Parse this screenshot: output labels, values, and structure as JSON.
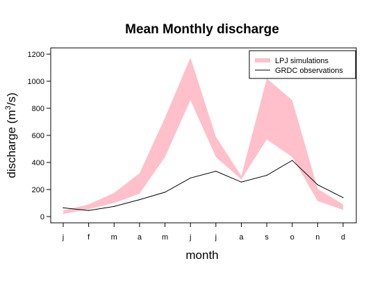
{
  "chart_data": {
    "type": "area",
    "title": "Mean Monthly discharge",
    "xlabel": "month",
    "ylabel_main": "discharge (m",
    "ylabel_sup": "3",
    "ylabel_tail": "/s)",
    "categories": [
      "j",
      "f",
      "m",
      "a",
      "m",
      "j",
      "j",
      "a",
      "s",
      "o",
      "n",
      "d"
    ],
    "ylim": [
      0,
      1200
    ],
    "yticks": [
      0,
      200,
      400,
      600,
      800,
      1000,
      1200
    ],
    "series": [
      {
        "name": "LPJ simulations",
        "kind": "band",
        "color": "#ffc0cb",
        "lower": [
          20,
          55,
          100,
          170,
          440,
          860,
          440,
          275,
          570,
          440,
          115,
          50
        ],
        "upper": [
          45,
          90,
          175,
          320,
          730,
          1175,
          590,
          300,
          1020,
          860,
          205,
          90
        ]
      },
      {
        "name": "GRDC observations",
        "kind": "line",
        "color": "#000000",
        "values": [
          65,
          45,
          75,
          125,
          180,
          285,
          335,
          255,
          305,
          415,
          235,
          140
        ]
      }
    ],
    "legend_position": "top-right",
    "grid": false
  }
}
